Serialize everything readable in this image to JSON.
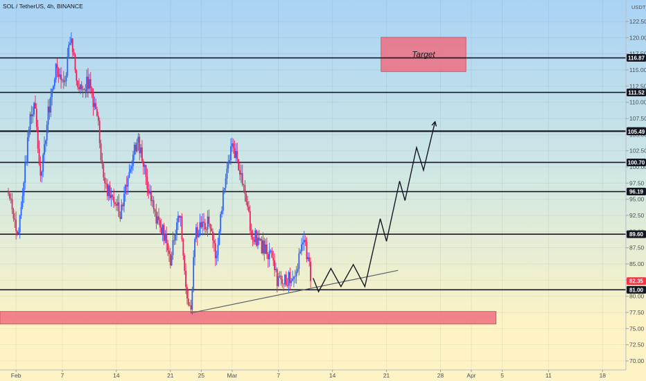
{
  "header": {
    "title": "SOL / TetherUS, 4h, BINANCE",
    "unit": "USDT"
  },
  "colors": {
    "up": "#2962ff",
    "down": "#e0245e",
    "bg_top": "#a9d3f5",
    "bg_bottom": "#fdf3c4",
    "zone": "#ef6f80",
    "last_price": "#f23645",
    "level": "#131722"
  },
  "chart_data": {
    "type": "candlestick",
    "symbol": "SOL / TetherUS",
    "interval": "4h",
    "exchange": "BINANCE",
    "ylim": [
      69.0,
      124.5
    ],
    "y_ticks": [
      70.0,
      72.5,
      75.0,
      77.5,
      80.0,
      82.5,
      85.0,
      87.5,
      90.0,
      92.5,
      95.0,
      97.5,
      100.0,
      102.5,
      105.0,
      107.5,
      110.0,
      112.5,
      115.0,
      117.5,
      120.0,
      122.5
    ],
    "x_ticks": [
      {
        "label": "Feb",
        "day": 1
      },
      {
        "label": "7",
        "day": 7
      },
      {
        "label": "14",
        "day": 14
      },
      {
        "label": "21",
        "day": 21
      },
      {
        "label": "25",
        "day": 25
      },
      {
        "label": "Mar",
        "day": 29
      },
      {
        "label": "7",
        "day": 35
      },
      {
        "label": "14",
        "day": 42
      },
      {
        "label": "21",
        "day": 49
      },
      {
        "label": "28",
        "day": 56
      },
      {
        "label": "Apr",
        "day": 60
      },
      {
        "label": "5",
        "day": 64
      },
      {
        "label": "11",
        "day": 70
      },
      {
        "label": "18",
        "day": 77
      }
    ],
    "levels": [
      116.87,
      111.52,
      105.56,
      105.49,
      100.7,
      96.19,
      89.6,
      81.0
    ],
    "last_price": 82.35,
    "anchors": [
      {
        "day": 0.0,
        "price": 96.0
      },
      {
        "day": 1.3,
        "price": 89.6
      },
      {
        "day": 2.8,
        "price": 107.5
      },
      {
        "day": 3.5,
        "price": 110.0
      },
      {
        "day": 4.2,
        "price": 97.0
      },
      {
        "day": 5.0,
        "price": 107.0
      },
      {
        "day": 6.2,
        "price": 116.0
      },
      {
        "day": 7.4,
        "price": 112.0
      },
      {
        "day": 7.9,
        "price": 121.0
      },
      {
        "day": 9.2,
        "price": 112.0
      },
      {
        "day": 10.5,
        "price": 113.0
      },
      {
        "day": 11.5,
        "price": 108.0
      },
      {
        "day": 12.3,
        "price": 98.0
      },
      {
        "day": 14.5,
        "price": 92.5
      },
      {
        "day": 16.0,
        "price": 100.5
      },
      {
        "day": 16.8,
        "price": 104.5
      },
      {
        "day": 17.5,
        "price": 100.0
      },
      {
        "day": 18.5,
        "price": 94.0
      },
      {
        "day": 20.0,
        "price": 90.0
      },
      {
        "day": 21.0,
        "price": 86.0
      },
      {
        "day": 22.3,
        "price": 93.0
      },
      {
        "day": 23.0,
        "price": 81.0
      },
      {
        "day": 23.6,
        "price": 78.0
      },
      {
        "day": 24.3,
        "price": 90.0
      },
      {
        "day": 26.0,
        "price": 92.0
      },
      {
        "day": 27.0,
        "price": 86.0
      },
      {
        "day": 28.0,
        "price": 98.0
      },
      {
        "day": 29.0,
        "price": 104.0
      },
      {
        "day": 30.0,
        "price": 99.0
      },
      {
        "day": 31.5,
        "price": 90.0
      },
      {
        "day": 33.0,
        "price": 87.5
      },
      {
        "day": 34.0,
        "price": 86.0
      },
      {
        "day": 35.0,
        "price": 82.0
      },
      {
        "day": 36.0,
        "price": 83.0
      },
      {
        "day": 37.0,
        "price": 81.8
      },
      {
        "day": 38.2,
        "price": 89.5
      },
      {
        "day": 39.3,
        "price": 82.35
      }
    ],
    "trendline": [
      {
        "day": 23.6,
        "price": 77.4
      },
      {
        "day": 50.5,
        "price": 84.0
      }
    ],
    "projection": [
      {
        "day": 39.5,
        "price": 82.8
      },
      {
        "day": 40.2,
        "price": 80.7
      },
      {
        "day": 41.8,
        "price": 84.3
      },
      {
        "day": 43.1,
        "price": 81.5
      },
      {
        "day": 44.7,
        "price": 84.9
      },
      {
        "day": 46.2,
        "price": 81.5
      },
      {
        "day": 48.2,
        "price": 92.0
      },
      {
        "day": 49.0,
        "price": 88.5
      },
      {
        "day": 50.7,
        "price": 97.8
      },
      {
        "day": 51.4,
        "price": 94.8
      },
      {
        "day": 52.9,
        "price": 103.0
      },
      {
        "day": 53.8,
        "price": 99.5
      },
      {
        "day": 55.3,
        "price": 107.0
      }
    ],
    "zones": [
      {
        "name": "Target",
        "label": "Target",
        "day_from": 48.3,
        "day_to": 59.3,
        "price_low": 114.75,
        "price_high": 120.05
      },
      {
        "name": "support",
        "label": "",
        "day_from": -4.0,
        "day_to": 63.2,
        "price_low": 75.7,
        "price_high": 77.65
      }
    ]
  }
}
